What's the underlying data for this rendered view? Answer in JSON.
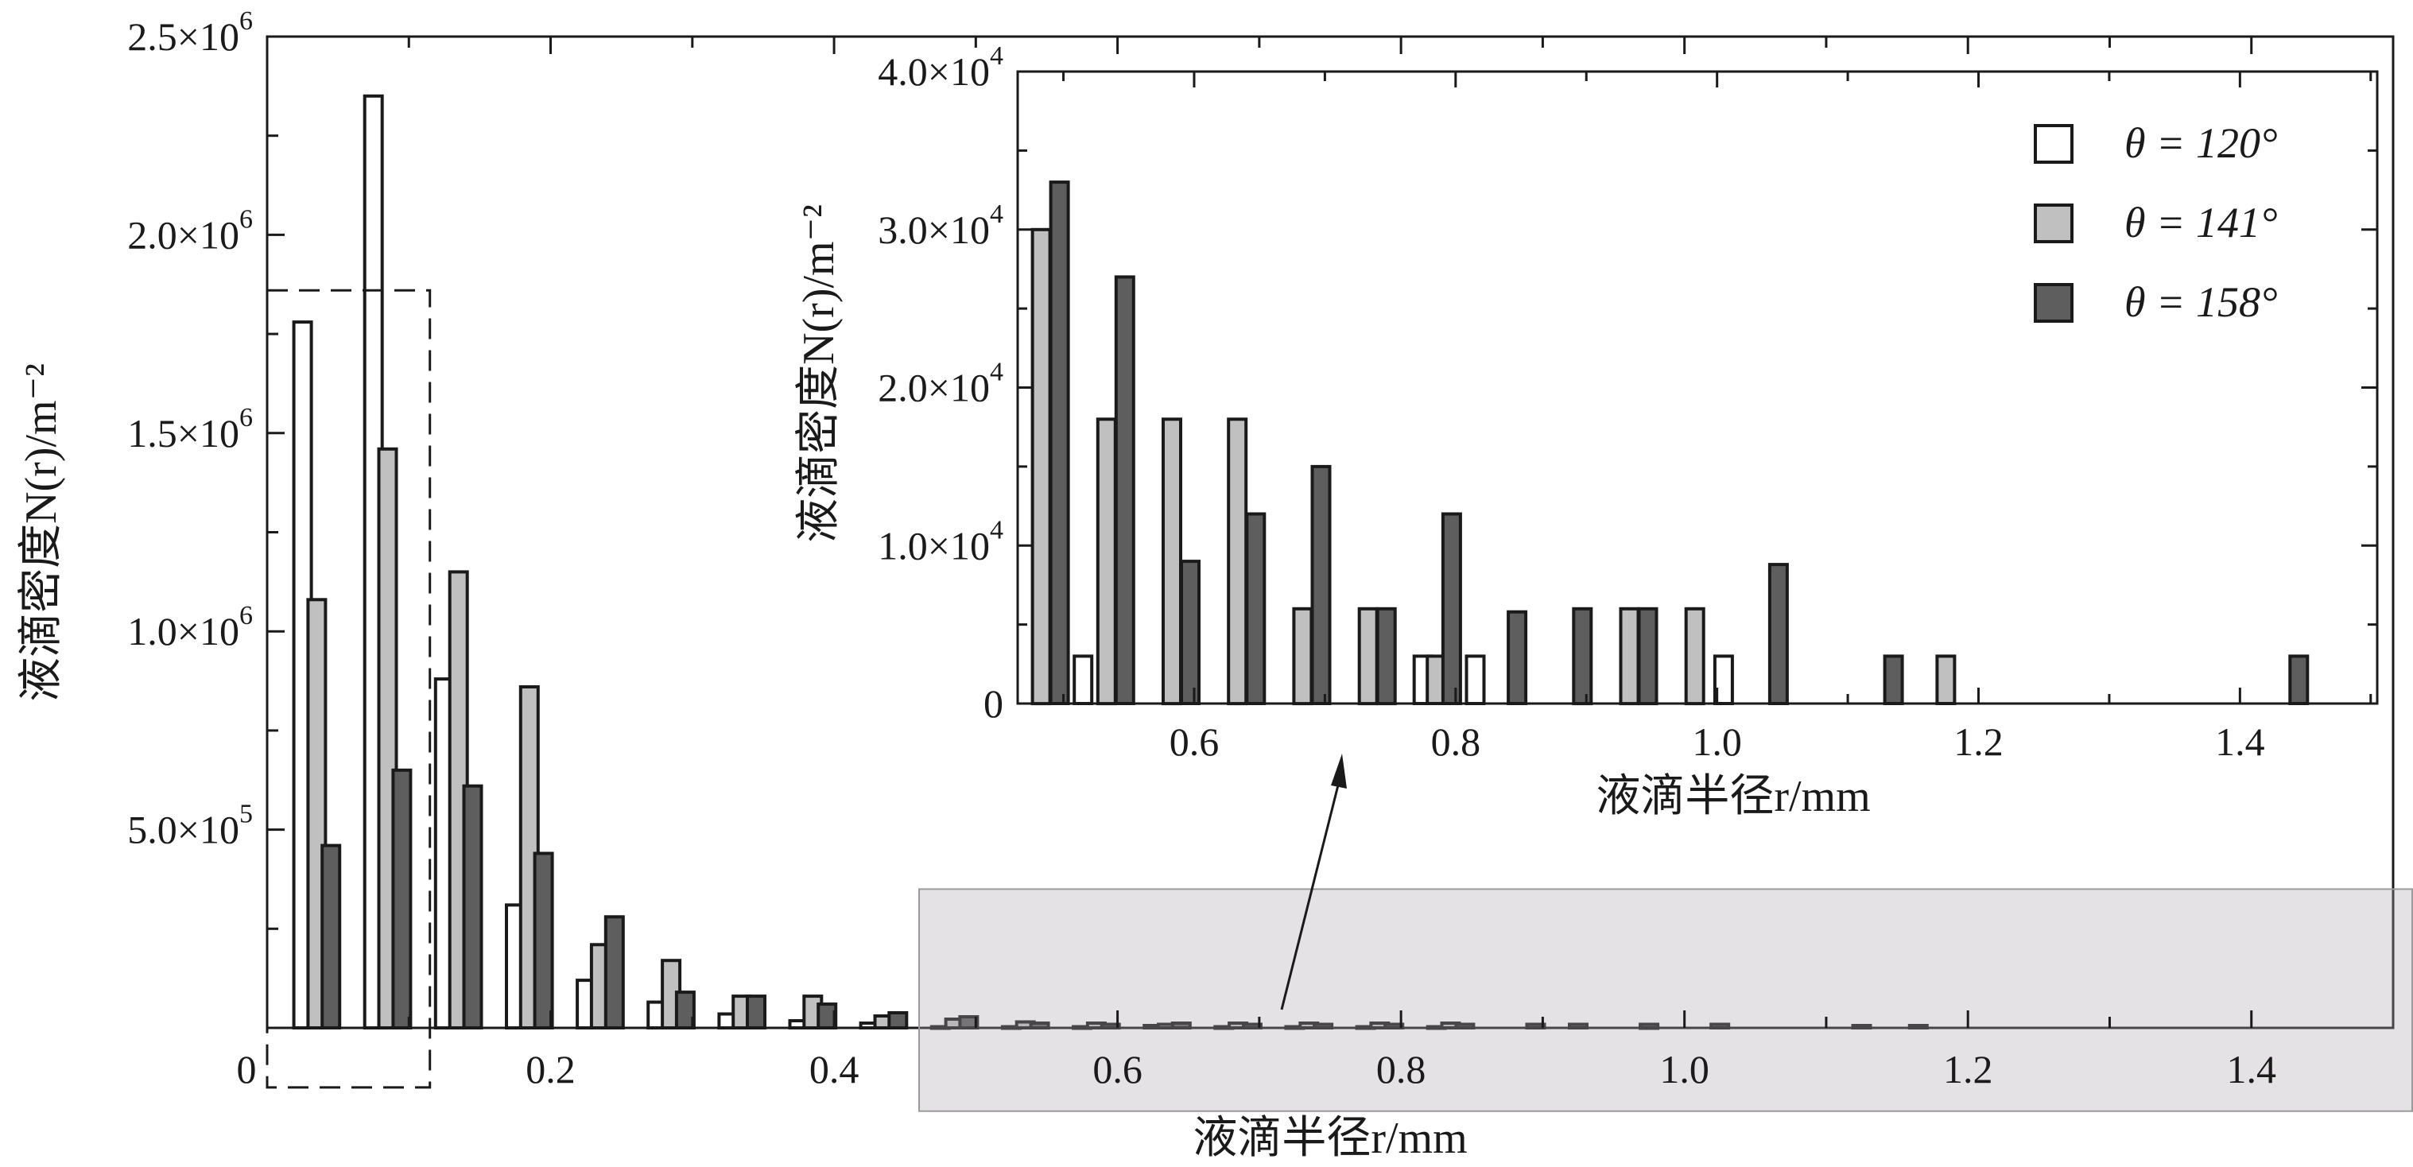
{
  "chart_data": [
    {
      "id": "main",
      "type": "bar",
      "xlabel": "液滴半径r/mm",
      "ylabel": "液滴密度N(r)/m⁻²",
      "xlim": [
        0.0,
        1.5
      ],
      "ylim": [
        0,
        2500000
      ],
      "x_ticks": [
        {
          "v": 0.2,
          "label": "0.2"
        },
        {
          "v": 0.4,
          "label": "0.4"
        },
        {
          "v": 0.6,
          "label": "0.6"
        },
        {
          "v": 0.8,
          "label": "0.8"
        },
        {
          "v": 1.0,
          "label": "1.0"
        },
        {
          "v": 1.2,
          "label": "1.2"
        },
        {
          "v": 1.4,
          "label": "1.4"
        }
      ],
      "x_origin_label": "0",
      "y_ticks": [
        {
          "v": 500000,
          "label": "5.0×10",
          "exp": "5"
        },
        {
          "v": 1000000,
          "label": "1.0×10",
          "exp": "6"
        },
        {
          "v": 1500000,
          "label": "1.5×10",
          "exp": "6"
        },
        {
          "v": 2000000,
          "label": "2.0×10",
          "exp": "6"
        },
        {
          "v": 2500000,
          "label": "2.5×10",
          "exp": "6"
        }
      ],
      "series": [
        {
          "name": "θ = 120°",
          "color": "#ffffff",
          "points": [
            [
              0.025,
              1780000
            ],
            [
              0.075,
              2350000
            ],
            [
              0.125,
              880000
            ],
            [
              0.175,
              310000
            ],
            [
              0.225,
              120000
            ],
            [
              0.275,
              65000
            ],
            [
              0.325,
              35000
            ],
            [
              0.375,
              18000
            ],
            [
              0.425,
              12000
            ],
            [
              0.475,
              3000
            ],
            [
              0.525,
              3000
            ],
            [
              0.575,
              3000
            ],
            [
              0.625,
              6000
            ],
            [
              0.675,
              3000
            ],
            [
              0.725,
              3000
            ],
            [
              0.775,
              3000
            ],
            [
              0.825,
              3000
            ],
            [
              0.975,
              3000
            ]
          ]
        },
        {
          "name": "θ = 141°",
          "color": "#c0c0c0",
          "points": [
            [
              0.035,
              1080000
            ],
            [
              0.085,
              1460000
            ],
            [
              0.135,
              1150000
            ],
            [
              0.185,
              860000
            ],
            [
              0.235,
              210000
            ],
            [
              0.285,
              170000
            ],
            [
              0.335,
              80000
            ],
            [
              0.385,
              80000
            ],
            [
              0.435,
              30000
            ],
            [
              0.485,
              22000
            ],
            [
              0.535,
              15000
            ],
            [
              0.585,
              12000
            ],
            [
              0.635,
              9000
            ],
            [
              0.685,
              12000
            ],
            [
              0.735,
              12000
            ],
            [
              0.785,
              12000
            ],
            [
              0.835,
              12000
            ]
          ]
        },
        {
          "name": "θ = 158°",
          "color": "#5e5e5e",
          "points": [
            [
              0.045,
              460000
            ],
            [
              0.095,
              650000
            ],
            [
              0.145,
              610000
            ],
            [
              0.195,
              440000
            ],
            [
              0.245,
              280000
            ],
            [
              0.295,
              90000
            ],
            [
              0.345,
              80000
            ],
            [
              0.395,
              60000
            ],
            [
              0.445,
              38000
            ],
            [
              0.495,
              28000
            ],
            [
              0.545,
              12000
            ],
            [
              0.595,
              9000
            ],
            [
              0.645,
              12000
            ],
            [
              0.695,
              9000
            ],
            [
              0.745,
              9000
            ],
            [
              0.795,
              9000
            ],
            [
              0.845,
              9000
            ],
            [
              0.895,
              9000
            ],
            [
              0.925,
              9000
            ],
            [
              0.975,
              9000
            ],
            [
              1.025,
              9000
            ],
            [
              1.125,
              6000
            ],
            [
              1.165,
              6000
            ]
          ]
        }
      ],
      "annotations": {
        "dashed_box_x": [
          0.0,
          0.098
        ],
        "dashed_box_y": [
          -150000,
          1860000
        ],
        "shaded_region_x": [
          0.46,
          1.5
        ],
        "shaded_region_y": [
          -210000,
          350000
        ],
        "arrow_from": [
          0.715,
          40000
        ],
        "arrow_to": [
          0.755,
          4200
        ]
      }
    },
    {
      "id": "inset",
      "type": "bar",
      "xlabel": "液滴半径r/mm",
      "ylabel": "液滴密度N(r)/m⁻²",
      "xlim": [
        0.465,
        1.505
      ],
      "ylim": [
        0,
        40000
      ],
      "x_ticks": [
        {
          "v": 0.6,
          "label": "0.6"
        },
        {
          "v": 0.8,
          "label": "0.8"
        },
        {
          "v": 1.0,
          "label": "1.0"
        },
        {
          "v": 1.2,
          "label": "1.2"
        },
        {
          "v": 1.4,
          "label": "1.4"
        }
      ],
      "y_ticks": [
        {
          "v": 0,
          "label": "0",
          "exp": ""
        },
        {
          "v": 10000,
          "label": "1.0×10",
          "exp": "4"
        },
        {
          "v": 20000,
          "label": "2.0×10",
          "exp": "4"
        },
        {
          "v": 30000,
          "label": "3.0×10",
          "exp": "4"
        },
        {
          "v": 40000,
          "label": "4.0×10",
          "exp": "4"
        }
      ],
      "legend": {
        "placement": "top-right",
        "entries": [
          "θ = 120°",
          "θ = 141°",
          "θ = 158°"
        ]
      },
      "series": [
        {
          "name": "θ = 120°",
          "color": "#ffffff",
          "points": [
            [
              0.515,
              3000
            ],
            [
              0.775,
              3000
            ],
            [
              0.815,
              3000
            ],
            [
              1.005,
              3000
            ]
          ]
        },
        {
          "name": "θ = 141°",
          "color": "#c0c0c0",
          "points": [
            [
              0.483,
              30000
            ],
            [
              0.533,
              18000
            ],
            [
              0.583,
              18000
            ],
            [
              0.633,
              18000
            ],
            [
              0.683,
              6000
            ],
            [
              0.733,
              6000
            ],
            [
              0.785,
              3000
            ],
            [
              0.933,
              6000
            ],
            [
              0.983,
              6000
            ],
            [
              1.175,
              3000
            ]
          ]
        },
        {
          "name": "θ = 158°",
          "color": "#5e5e5e",
          "points": [
            [
              0.497,
              33000
            ],
            [
              0.547,
              27000
            ],
            [
              0.597,
              9000
            ],
            [
              0.647,
              12000
            ],
            [
              0.697,
              15000
            ],
            [
              0.747,
              6000
            ],
            [
              0.797,
              12000
            ],
            [
              0.847,
              5800
            ],
            [
              0.897,
              6000
            ],
            [
              0.947,
              6000
            ],
            [
              1.047,
              8800
            ],
            [
              1.135,
              3000
            ],
            [
              1.445,
              3000
            ]
          ]
        }
      ]
    }
  ]
}
